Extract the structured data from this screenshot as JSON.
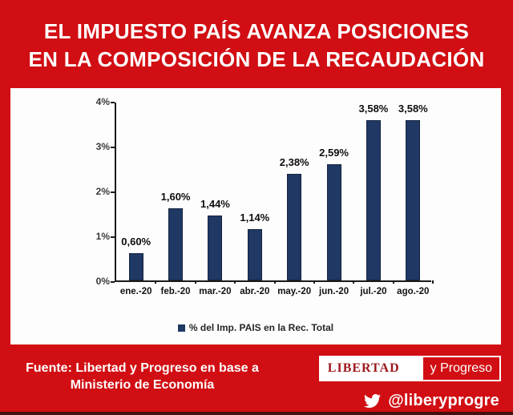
{
  "title": {
    "line1": "EL IMPUESTO PAÍS AVANZA POSICIONES",
    "line2": "EN LA COMPOSICIÓN DE LA RECAUDACIÓN"
  },
  "chart_data": {
    "type": "bar",
    "title": "",
    "categories": [
      "ene.-20",
      "feb.-20",
      "mar.-20",
      "abr.-20",
      "may.-20",
      "jun.-20",
      "jul.-20",
      "ago.-20"
    ],
    "values": [
      0.6,
      1.6,
      1.44,
      1.14,
      2.38,
      2.59,
      3.58,
      3.58
    ],
    "value_labels": [
      "0,60%",
      "1,60%",
      "1,44%",
      "1,14%",
      "2,38%",
      "2,59%",
      "3,58%",
      "3,58%"
    ],
    "legend": "% del Imp. PAIS en la Rec. Total",
    "legend_position": "bottom",
    "xlabel": "",
    "ylabel": "",
    "ylim": [
      0,
      4
    ],
    "yticks": [
      0,
      1,
      2,
      3,
      4
    ],
    "ytick_labels": [
      "0%",
      "1%",
      "2%",
      "3%",
      "4%"
    ],
    "grid": false,
    "bar_color": "#1f3864",
    "bar_border_color": "#16243e"
  },
  "source": {
    "line1": "Fuente: Libertad y Progreso en base a",
    "line2": "Ministerio de Economía"
  },
  "logo": {
    "left_text": "LIBERTAD",
    "right_text": "y Progreso"
  },
  "social": {
    "icon": "twitter-bird-icon",
    "handle": "@liberyprogre"
  },
  "colors": {
    "background_red": "#d10e13",
    "panel_white": "#fdfdfd",
    "bar_navy": "#1f3864",
    "bar_border_navy": "#16243e",
    "logo_text_dark_red": "#9c181c",
    "bottom_strip_dark": "#45100f"
  }
}
